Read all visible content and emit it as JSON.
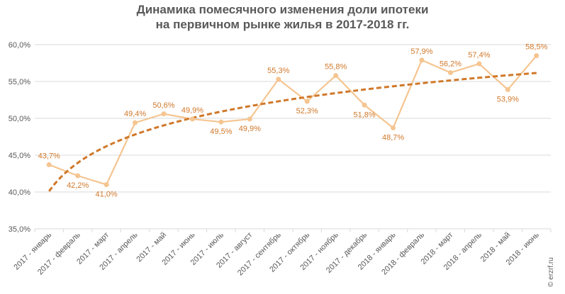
{
  "title_lines": [
    "Динамика помесячного изменения доли ипотеки",
    "на первичном рынке жилья в 2017-2018 гг."
  ],
  "credit": "© erzrf.ru",
  "colors": {
    "series_line": "#F5C591",
    "trend_line": "#D0782A",
    "data_label": "#D0782A",
    "axis_text": "#595959",
    "grid": "#D9D9D9"
  },
  "chart_data": {
    "type": "line",
    "categories": [
      "2017 - январь",
      "2017 - февраль",
      "2017 - март",
      "2017 - апрель",
      "2017 - май",
      "2017 - июнь",
      "2017 - июль",
      "2017 - август",
      "2017 - сентябрь",
      "2017 - октябрь",
      "2017 - ноябрь",
      "2017 - декабрь",
      "2018 - январь",
      "2018 - февраль",
      "2018 - март",
      "2018 - апрель",
      "2018 - май",
      "2018 - июнь"
    ],
    "series": [
      {
        "values": [
          43.7,
          42.2,
          41.0,
          49.4,
          50.6,
          49.9,
          49.5,
          49.9,
          55.3,
          52.3,
          55.8,
          51.8,
          48.7,
          57.9,
          56.2,
          57.4,
          53.9,
          58.5
        ],
        "labels": [
          "43,7%",
          "42,2%",
          "41,0%",
          "49,4%",
          "50,6%",
          "49,9%",
          "49,5%",
          "49,9%",
          "55,3%",
          "52,3%",
          "55,8%",
          "51,8%",
          "48,7%",
          "57,9%",
          "56,2%",
          "57,4%",
          "53,9%",
          "58,5%"
        ],
        "label_position": [
          "above",
          "below",
          "below",
          "above",
          "above",
          "above",
          "below",
          "below",
          "above",
          "below",
          "above",
          "below",
          "below",
          "above",
          "above",
          "above",
          "below",
          "above"
        ]
      }
    ],
    "trendline": {
      "type": "logarithmic",
      "style": "dashed"
    },
    "ylim": [
      35,
      60
    ],
    "yticks": [
      35,
      40,
      45,
      50,
      55,
      60
    ],
    "ytick_labels": [
      "35,0%",
      "40,0%",
      "45,0%",
      "50,0%",
      "55,0%",
      "60,0%"
    ],
    "grid": true,
    "legend": "none",
    "xlabel": "",
    "ylabel": ""
  }
}
